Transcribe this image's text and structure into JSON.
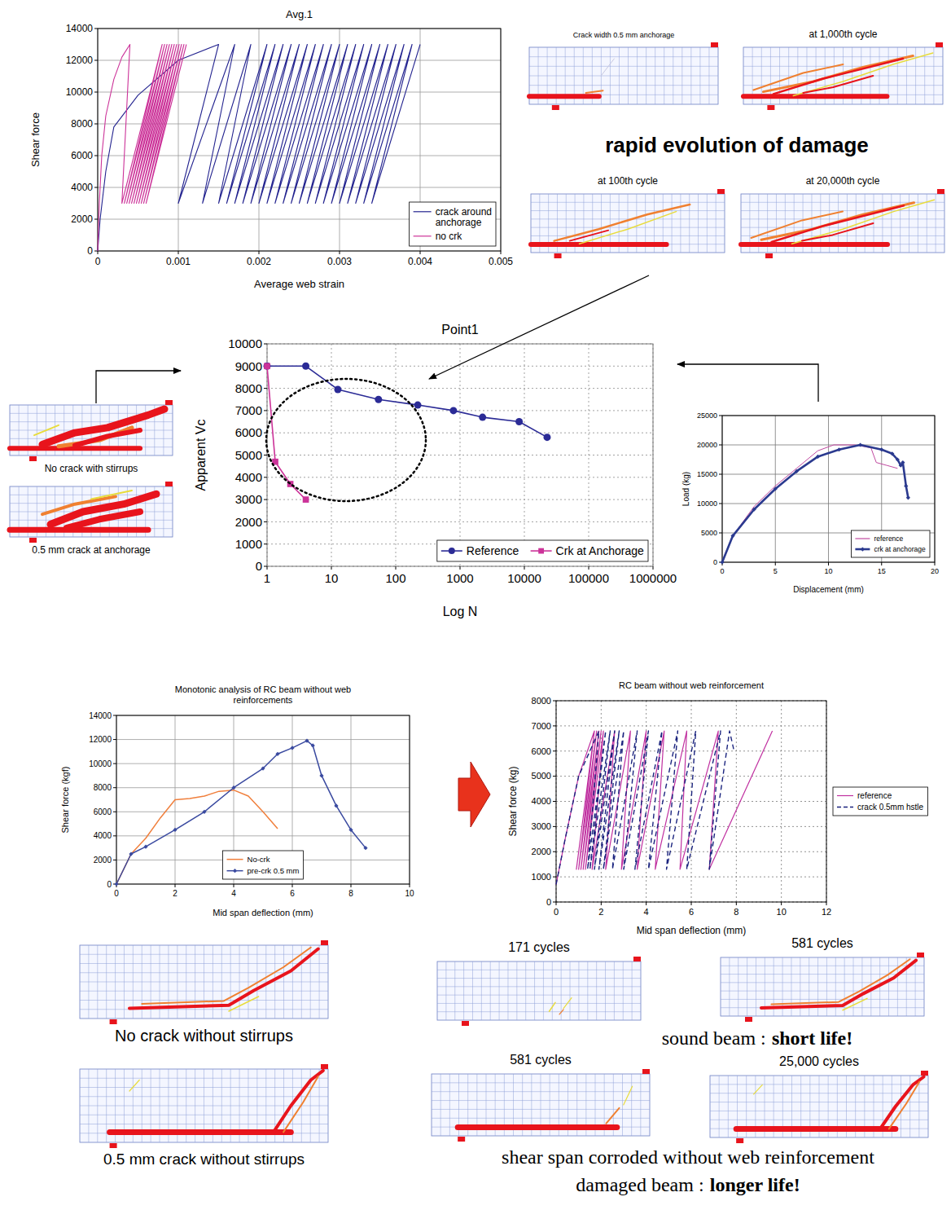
{
  "chart_data": [
    {
      "type": "line",
      "title": "Avg.1",
      "x_label": "Average web strain",
      "y_label": "Shear force",
      "xlim": [
        0,
        0.005
      ],
      "ylim": [
        0,
        14000
      ],
      "xticks": [
        0,
        0.001,
        0.002,
        0.003,
        0.004,
        0.005
      ],
      "yticks": [
        0,
        2000,
        4000,
        6000,
        8000,
        10000,
        12000,
        14000
      ],
      "grid": true,
      "legend": "lower right",
      "series": [
        {
          "name": "crack around anchorage",
          "color": "#23238f",
          "x": [
            0,
            3e-05,
            0.0001,
            0.0002,
            0.0005,
            0.001,
            0.0015,
            0.001,
            0.0017,
            0.0013,
            0.0019,
            0.0015,
            0.0021,
            0.0016,
            0.0022,
            0.0017,
            0.0023,
            0.0018,
            0.0024,
            0.0019,
            0.0025,
            0.002,
            0.0026,
            0.0021,
            0.0027,
            0.0022,
            0.0028,
            0.0023,
            0.0029,
            0.0024,
            0.003,
            0.0025,
            0.0031,
            0.0026,
            0.0032,
            0.0027,
            0.0033,
            0.0028,
            0.0034,
            0.0029,
            0.0035,
            0.003,
            0.0036,
            0.0031,
            0.0037,
            0.0032,
            0.0038,
            0.0033,
            0.0039,
            0.0034,
            0.004
          ],
          "values": [
            0,
            2000,
            5000,
            7800,
            9800,
            12000,
            13000,
            3000,
            13000,
            3000,
            13000,
            3000,
            13000,
            3000,
            13000,
            3000,
            13000,
            3000,
            13000,
            3000,
            13000,
            3000,
            13000,
            3000,
            13000,
            3000,
            13000,
            3000,
            13000,
            3000,
            13000,
            3000,
            13000,
            3000,
            13000,
            3000,
            13000,
            3000,
            13000,
            3000,
            13000,
            3000,
            13000,
            3000,
            13000,
            3000,
            13000,
            3000,
            13000,
            3000,
            13000
          ]
        },
        {
          "name": "no crk",
          "color": "#cc3399",
          "x": [
            0,
            2e-05,
            5e-05,
            0.0001,
            0.0002,
            0.0003,
            0.0004,
            0.0003,
            0.0008,
            0.00033,
            0.00083,
            0.00036,
            0.00086,
            0.00039,
            0.00089,
            0.00042,
            0.00092,
            0.00045,
            0.00095,
            0.00048,
            0.00098,
            0.00051,
            0.00101,
            0.00054,
            0.00104,
            0.00057,
            0.00107,
            0.0006,
            0.0011
          ],
          "values": [
            0,
            3000,
            6000,
            8500,
            10800,
            12200,
            13000,
            3000,
            13000,
            3000,
            13000,
            3000,
            13000,
            3000,
            13000,
            3000,
            13000,
            3000,
            13000,
            3000,
            13000,
            3000,
            13000,
            3000,
            13000,
            3000,
            13000,
            3000,
            13000
          ]
        }
      ]
    },
    {
      "type": "line",
      "title": "Point1",
      "x_label": "Log N",
      "y_label": "Apparent Vc",
      "log": "x",
      "xlim": [
        1,
        1000000
      ],
      "ylim": [
        0,
        10000
      ],
      "xticks": [
        1,
        10,
        100,
        1000,
        10000,
        100000,
        1000000
      ],
      "yticks": [
        0,
        1000,
        2000,
        3000,
        4000,
        5000,
        6000,
        7000,
        8000,
        9000,
        10000
      ],
      "grid": true,
      "legend": "lower right",
      "series": [
        {
          "name": "Reference",
          "color": "#2b2b96",
          "marker": "circle",
          "x": [
            1,
            4,
            12.6,
            54,
            220,
            790,
            2240,
            8300,
            22600
          ],
          "values": [
            9000,
            9000,
            7950,
            7500,
            7250,
            7000,
            6700,
            6500,
            5800
          ]
        },
        {
          "name": "Crk at Anchorage",
          "color": "#cc3399",
          "marker": "square",
          "x": [
            1,
            1.34,
            2.3,
            4
          ],
          "values": [
            9000,
            4700,
            3700,
            3000
          ]
        }
      ]
    },
    {
      "type": "line",
      "x_label": "Displacement (mm)",
      "y_label": "Load (kg)",
      "xlim": [
        0,
        20
      ],
      "ylim": [
        0,
        25000
      ],
      "xticks": [
        0,
        5,
        10,
        15,
        20
      ],
      "yticks": [
        0,
        5000,
        10000,
        15000,
        20000,
        25000
      ],
      "grid": true,
      "legend": "lower right",
      "series": [
        {
          "name": "reference",
          "color": "#c04aa0",
          "x": [
            0,
            1,
            3,
            5,
            7,
            9,
            10.5,
            12.5,
            14,
            14.5,
            15.5,
            16.5
          ],
          "values": [
            0,
            4500,
            9500,
            13000,
            16000,
            19000,
            20000,
            20000,
            19500,
            17000,
            16500,
            16000
          ]
        },
        {
          "name": "crk at anchorage",
          "color": "#2b3a8f",
          "marker": "diamond",
          "x": [
            0,
            1,
            3,
            5,
            7,
            9,
            11,
            13,
            15,
            16,
            16.5,
            16.8,
            17,
            17.3,
            17.5
          ],
          "values": [
            0,
            4500,
            9000,
            12500,
            15500,
            18000,
            19200,
            20000,
            19200,
            18500,
            17500,
            16500,
            17000,
            13000,
            11000
          ]
        }
      ]
    },
    {
      "type": "line",
      "title": "Monotonic analysis of RC beam without web reinforcements",
      "x_label": "Mid span deflection (mm)",
      "y_label": "Shear force (kgf)",
      "xlim": [
        0,
        10
      ],
      "ylim": [
        0,
        14000
      ],
      "xticks": [
        0,
        2,
        4,
        6,
        8,
        10
      ],
      "yticks": [
        0,
        2000,
        4000,
        6000,
        8000,
        10000,
        12000,
        14000
      ],
      "grid": true,
      "legend": "lower center",
      "series": [
        {
          "name": "No-crk",
          "color": "#f07f3c",
          "x": [
            0,
            0.5,
            1,
            1.5,
            2,
            2.5,
            3,
            3.5,
            4,
            4.5,
            5,
            5.5
          ],
          "values": [
            0,
            2500,
            3800,
            5500,
            7000,
            7100,
            7300,
            7700,
            7800,
            7300,
            6000,
            4600
          ]
        },
        {
          "name": "pre-crk 0.5 mm",
          "color": "#3a4aa0",
          "marker": "diamond",
          "x": [
            0,
            0.5,
            1,
            2,
            3,
            4,
            5,
            5.5,
            6,
            6.5,
            6.7,
            7,
            7.5,
            8,
            8.5
          ],
          "values": [
            0,
            2500,
            3100,
            4500,
            6000,
            8000,
            9600,
            10800,
            11300,
            11900,
            11500,
            9000,
            6500,
            4500,
            3000
          ]
        }
      ]
    },
    {
      "type": "line",
      "title": "RC beam without web reinforcement",
      "x_label": "Mid span deflection (mm)",
      "y_label": "Shear force (kg)",
      "xlim": [
        0,
        12
      ],
      "ylim": [
        0,
        8000
      ],
      "xticks": [
        0,
        2,
        4,
        6,
        8,
        10,
        12
      ],
      "yticks": [
        0,
        1000,
        2000,
        3000,
        4000,
        5000,
        6000,
        7000,
        8000
      ],
      "grid": true,
      "legend": "right",
      "series": [
        {
          "name": "reference",
          "color": "#c030a0",
          "x": [
            0,
            0.4,
            1.0,
            1.7,
            0.9,
            1.7,
            1.0,
            1.8,
            1.1,
            1.9,
            1.2,
            2.0,
            1.3,
            2.1,
            1.6,
            2.6,
            2.2,
            3.3,
            2.9,
            4.0,
            3.6,
            4.8,
            4.4,
            5.8,
            5.5,
            7.2,
            6.8,
            9.6
          ],
          "values": [
            700,
            2500,
            5000,
            6800,
            1300,
            6800,
            1300,
            6800,
            1300,
            6800,
            1300,
            6800,
            1300,
            6800,
            1300,
            6800,
            1300,
            6800,
            1300,
            6800,
            1300,
            6800,
            1300,
            6800,
            1300,
            6800,
            1300,
            6800
          ]
        },
        {
          "name": "crack 0.5mm hstle",
          "color": "#1a237e",
          "line_style": "dashed",
          "x": [
            0,
            0.4,
            1.0,
            1.9,
            1.4,
            2.2,
            1.5,
            2.4,
            1.7,
            2.6,
            1.9,
            2.8,
            2.1,
            3.0,
            2.5,
            3.6,
            3.0,
            4.1,
            3.5,
            4.7,
            4.1,
            5.4,
            4.9,
            6.2,
            5.8,
            7.3,
            6.8,
            7.7,
            7.9
          ],
          "values": [
            700,
            2500,
            5000,
            6800,
            1300,
            6800,
            1300,
            6800,
            1300,
            6800,
            1300,
            6800,
            1300,
            6800,
            1300,
            6800,
            1300,
            6800,
            1300,
            6800,
            1300,
            6800,
            1300,
            6800,
            1300,
            6800,
            1300,
            6800,
            6000
          ]
        }
      ]
    }
  ],
  "annotations": {
    "headline": "rapid evolution of damage",
    "meshes": [
      {
        "label": "Crack width 0.5 mm anchorage"
      },
      {
        "label": "at 1,000th cycle"
      },
      {
        "label": "at 100th cycle"
      },
      {
        "label": "at 20,000th cycle"
      },
      {
        "label": "No crack with stirrups"
      },
      {
        "label": "0.5 mm crack at anchorage"
      },
      {
        "label": "No crack without stirrups"
      },
      {
        "label": "0.5 mm crack without stirrups"
      },
      {
        "label": "171 cycles"
      },
      {
        "label": "581 cycles"
      },
      {
        "label": "581 cycles"
      },
      {
        "label": "25,000 cycles"
      }
    ],
    "captions": [
      {
        "text": "sound beam :",
        "bold": "short life!"
      },
      {
        "text": "shear span corroded without web reinforcement"
      },
      {
        "text": "damaged beam :",
        "bold": "longer life!"
      }
    ]
  }
}
